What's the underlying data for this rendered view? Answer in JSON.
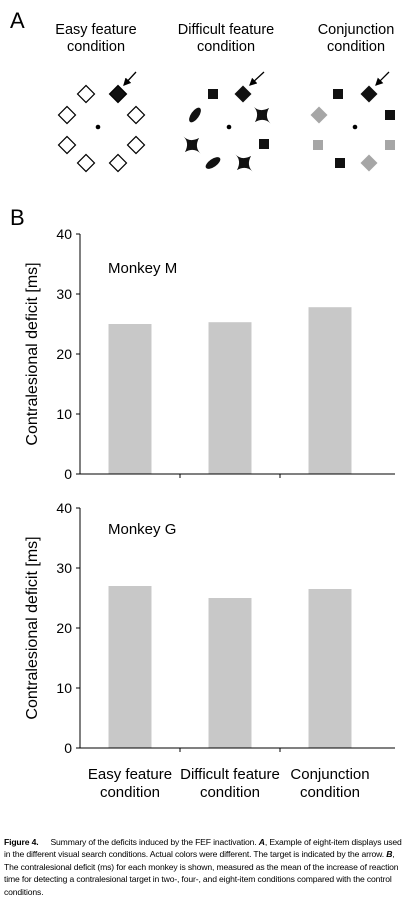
{
  "panel_a": {
    "letter": "A",
    "conditions": [
      {
        "title_line1": "Easy feature",
        "title_line2": "condition"
      },
      {
        "title_line1": "Difficult feature",
        "title_line2": "condition"
      },
      {
        "title_line1": "Conjunction",
        "title_line2": "condition"
      }
    ],
    "colors": {
      "black": "#111111",
      "gray": "#a6a6a6",
      "white": "#ffffff"
    }
  },
  "panel_b": {
    "letter": "B"
  },
  "chart_data": [
    {
      "type": "bar",
      "annotation": "Monkey M",
      "categories": [
        "Easy feature condition",
        "Difficult feature condition",
        "Conjunction condition"
      ],
      "values": [
        25,
        25.3,
        27.8
      ],
      "ylabel": "Contralesional deficit [ms]",
      "ylim": [
        0,
        40
      ],
      "yticks": [
        0,
        10,
        20,
        30,
        40
      ],
      "bar_color": "#c8c8c8",
      "grid": false
    },
    {
      "type": "bar",
      "annotation": "Monkey G",
      "categories": [
        "Easy feature condition",
        "Difficult feature condition",
        "Conjunction condition"
      ],
      "values": [
        27,
        25,
        26.5
      ],
      "ylabel": "Contralesional deficit [ms]",
      "ylim": [
        0,
        40
      ],
      "yticks": [
        0,
        10,
        20,
        30,
        40
      ],
      "bar_color": "#c8c8c8",
      "grid": false
    }
  ],
  "xaxis_labels": [
    {
      "line1": "Easy feature",
      "line2": "condition"
    },
    {
      "line1": "Difficult feature",
      "line2": "condition"
    },
    {
      "line1": "Conjunction",
      "line2": "condition"
    }
  ],
  "caption": {
    "label": "Figure 4.",
    "part1": "Summary of the deficits induced by the FEF inactivation. ",
    "a": "A",
    "part2": ", Example of eight-item displays used in the different visual search conditions. Actual colors were different. The target is indicated by the arrow. ",
    "b": "B",
    "part3": ", The contralesional deficit (ms) for each monkey is shown, measured as the mean of the increase of reaction time for detecting a contralesional target in two-, four-, and eight-item conditions compared with the control conditions."
  }
}
